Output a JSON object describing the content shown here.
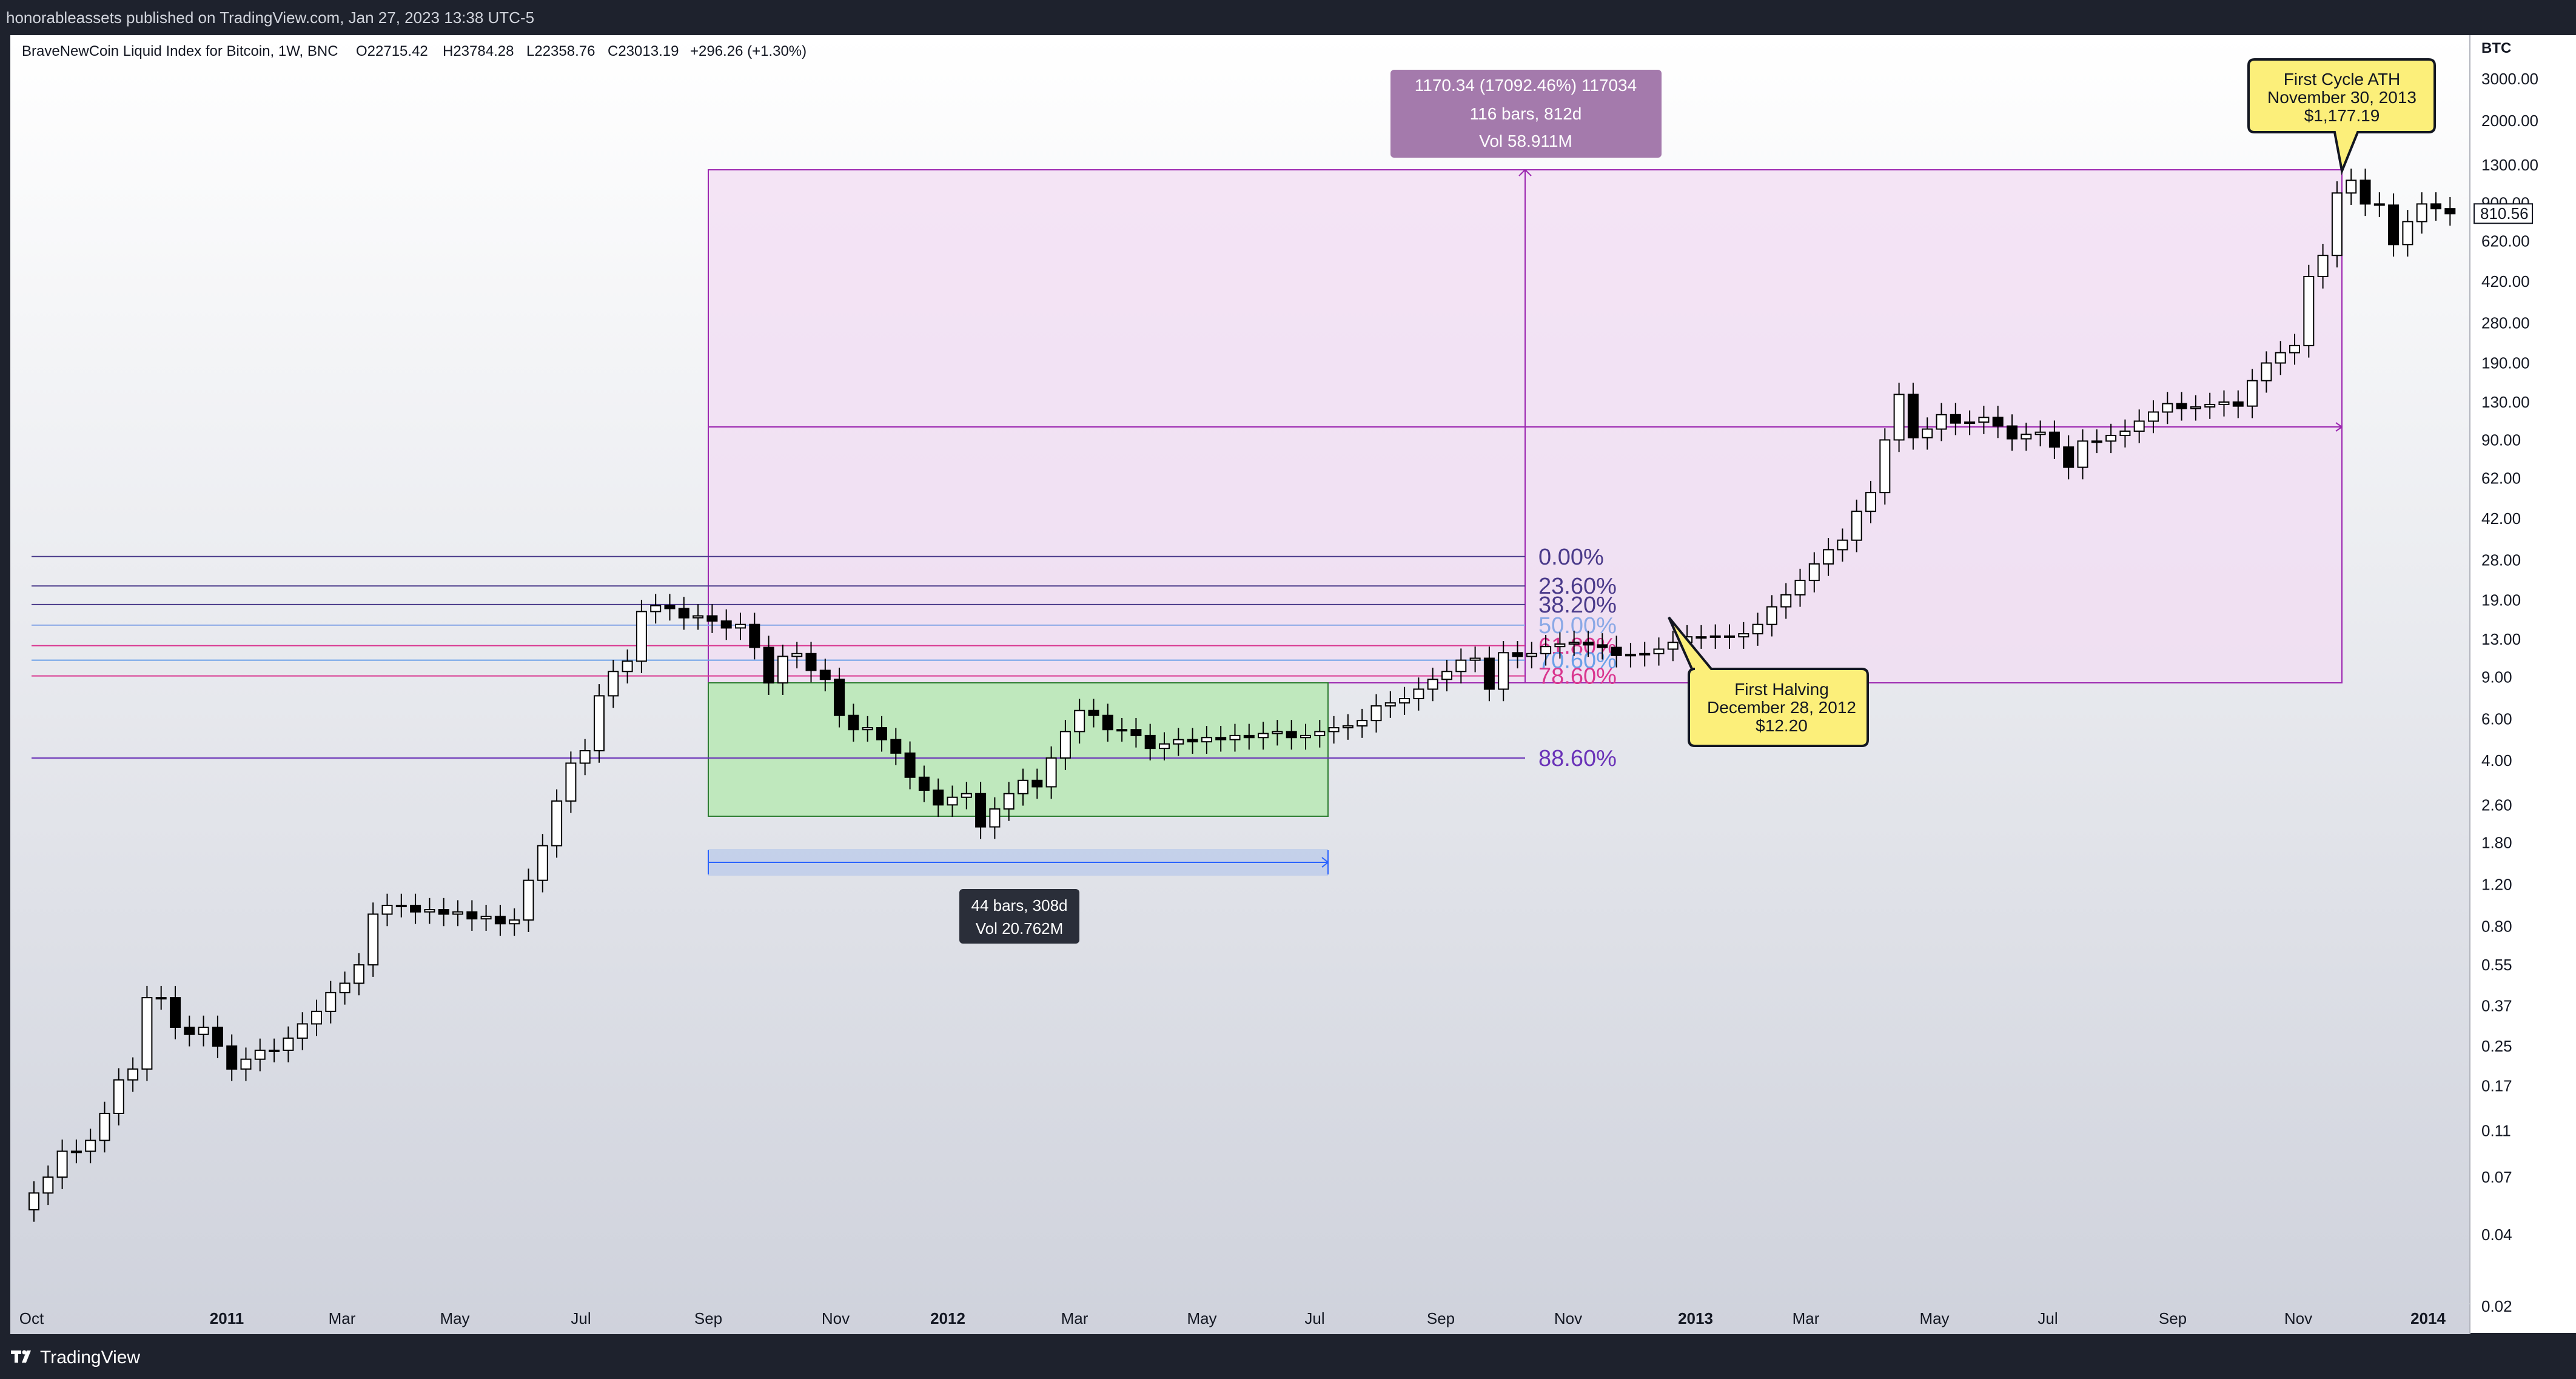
{
  "header": {
    "published": "honorableassets published on TradingView.com, Jan 27, 2023 13:38 UTC-5"
  },
  "footer": {
    "brand": "TradingView"
  },
  "symbol_info": {
    "name": "BraveNewCoin Liquid Index for Bitcoin, 1W, BNC",
    "open": "O22715.42",
    "high": "H23784.28",
    "low": "L22358.76",
    "close": "C23013.19",
    "change": "+296.26 (+1.30%)"
  },
  "chart_data": {
    "type": "candlestick",
    "y_scale": "log",
    "currency": "BTC",
    "ylim": [
      0.015,
      4000
    ],
    "price_ticks": [
      "3000.00",
      "2000.00",
      "1300.00",
      "900.00",
      "620.00",
      "420.00",
      "280.00",
      "190.00",
      "130.00",
      "90.00",
      "62.00",
      "42.00",
      "28.00",
      "19.00",
      "13.00",
      "9.00",
      "6.00",
      "4.00",
      "2.60",
      "1.80",
      "1.20",
      "0.80",
      "0.55",
      "0.37",
      "0.25",
      "0.17",
      "0.11",
      "0.07",
      "0.04",
      "0.02"
    ],
    "time_ticks": [
      {
        "label": "Oct",
        "bold": false
      },
      {
        "label": "2011",
        "bold": true
      },
      {
        "label": "Mar",
        "bold": false
      },
      {
        "label": "May",
        "bold": false
      },
      {
        "label": "Jul",
        "bold": false
      },
      {
        "label": "Sep",
        "bold": false
      },
      {
        "label": "Nov",
        "bold": false
      },
      {
        "label": "2012",
        "bold": true
      },
      {
        "label": "Mar",
        "bold": false
      },
      {
        "label": "May",
        "bold": false
      },
      {
        "label": "Jul",
        "bold": false
      },
      {
        "label": "Sep",
        "bold": false
      },
      {
        "label": "Nov",
        "bold": false
      },
      {
        "label": "2013",
        "bold": true
      },
      {
        "label": "Mar",
        "bold": false
      },
      {
        "label": "May",
        "bold": false
      },
      {
        "label": "Jul",
        "bold": false
      },
      {
        "label": "Sep",
        "bold": false
      },
      {
        "label": "Nov",
        "bold": false
      },
      {
        "label": "2014",
        "bold": true
      }
    ],
    "last_price": "810.56",
    "closes": [
      0.06,
      0.07,
      0.09,
      0.09,
      0.1,
      0.13,
      0.18,
      0.2,
      0.4,
      0.4,
      0.3,
      0.28,
      0.3,
      0.25,
      0.2,
      0.22,
      0.24,
      0.24,
      0.27,
      0.31,
      0.35,
      0.42,
      0.46,
      0.55,
      0.9,
      0.98,
      0.98,
      0.92,
      0.94,
      0.9,
      0.92,
      0.86,
      0.88,
      0.82,
      0.85,
      1.25,
      1.75,
      2.7,
      3.9,
      4.4,
      7.5,
      9.5,
      10.5,
      17,
      18,
      17.5,
      16,
      16.3,
      15.5,
      14.5,
      15,
      12,
      8.5,
      11,
      11.3,
      9.6,
      8.8,
      6.2,
      5.4,
      5.5,
      4.9,
      4.3,
      3.4,
      3,
      2.6,
      2.8,
      2.9,
      2.1,
      2.5,
      2.9,
      3.3,
      3.1,
      4.1,
      5.3,
      6.5,
      6.2,
      5.4,
      5.4,
      5.1,
      4.5,
      4.7,
      4.9,
      4.8,
      5.0,
      4.9,
      5.1,
      5.0,
      5.2,
      5.3,
      5.0,
      5.1,
      5.3,
      5.5,
      5.6,
      5.9,
      6.8,
      7.0,
      7.3,
      8.0,
      8.8,
      9.5,
      10.6,
      10.8,
      8.0,
      11.4,
      11.0,
      11.3,
      12.1,
      12.4,
      12.6,
      12.3,
      12.0,
      11.1,
      11.2,
      11.3,
      11.8,
      12.6,
      13.3,
      13.3,
      13.4,
      13.3,
      13.7,
      15.0,
      17.8,
      20,
      23,
      27,
      31,
      34,
      45,
      54,
      90,
      140,
      92,
      100,
      115,
      106,
      107,
      112,
      103,
      91,
      95,
      97,
      84,
      69,
      89,
      89,
      94,
      98,
      108,
      118,
      128,
      122,
      124,
      127,
      130,
      125,
      160,
      190,
      210,
      225,
      440,
      540,
      990,
      1120,
      890,
      880,
      600,
      750,
      890,
      850,
      810
    ]
  },
  "drawings": {
    "fib_levels": [
      {
        "label": "0.00%",
        "color": "#4a3a8a"
      },
      {
        "label": "23.60%",
        "color": "#4a3a8a"
      },
      {
        "label": "38.20%",
        "color": "#4a3a8a"
      },
      {
        "label": "50.00%",
        "color": "#8aa8e6"
      },
      {
        "label": "61.80%",
        "color": "#d9368f"
      },
      {
        "label": "70.60%",
        "color": "#6aa0e8"
      },
      {
        "label": "78.60%",
        "color": "#d9368f"
      },
      {
        "label": "88.60%",
        "color": "#6a33b8"
      }
    ],
    "measure_large": {
      "line1": "1170.34 (17092.46%) 117034",
      "line2": "116 bars, 812d",
      "line3": "Vol 58.911M"
    },
    "measure_small": {
      "line1": "44 bars, 308d",
      "line2": "Vol 20.762M"
    },
    "callout_ath": {
      "line1": "First Cycle ATH",
      "line2": "November 30, 2013",
      "line3": "$1,177.19"
    },
    "callout_halving": {
      "line1": "First Halving",
      "line2": "December 28, 2012",
      "line3": "$12.20"
    },
    "colors": {
      "candle_up": "#ffffff",
      "candle_down": "#000000",
      "purple_box_fill": "#f1dcf3",
      "green_box_fill": "#bfe8bd",
      "measure_label_bg": "#a47aac",
      "callout_bg": "#fcef7a"
    }
  }
}
